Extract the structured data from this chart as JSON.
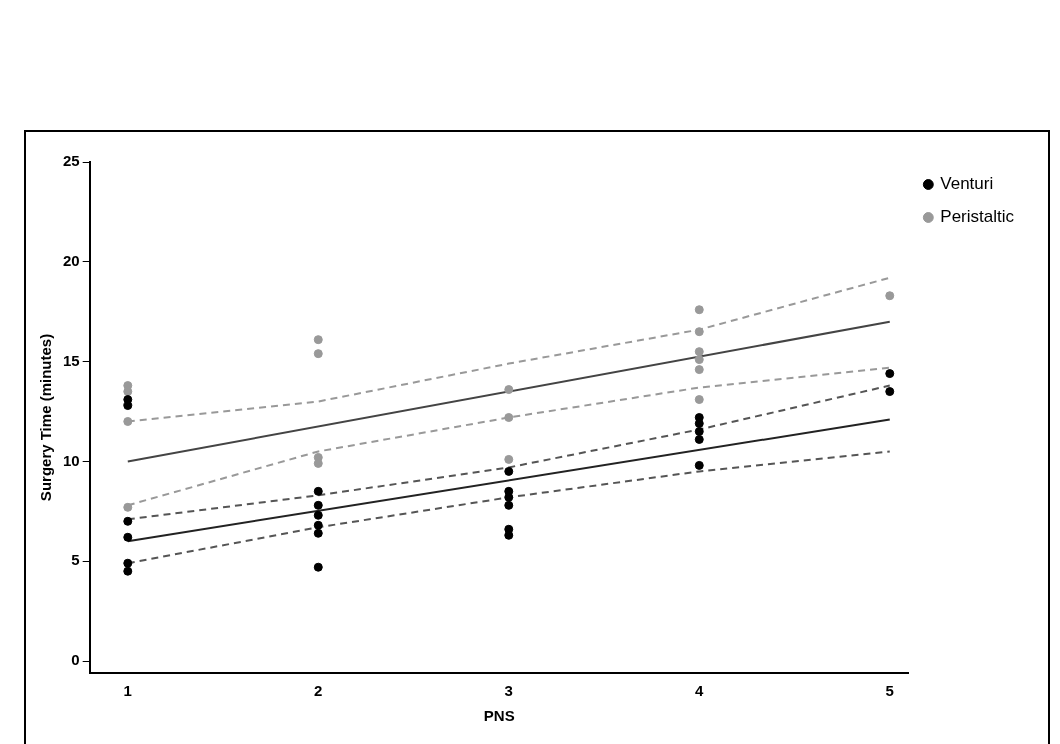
{
  "chart_data": {
    "type": "scatter",
    "xlabel": "PNS",
    "ylabel": "Surgery Time (minutes)",
    "xlim": [
      0.8,
      5.1
    ],
    "ylim": [
      -0.6,
      25
    ],
    "xticks": [
      1,
      2,
      3,
      4,
      5
    ],
    "yticks": [
      0,
      5,
      10,
      15,
      20,
      25
    ],
    "grid": false,
    "legend": "top right",
    "marker": "circle",
    "series": [
      {
        "name": "Venturi",
        "color": "#000000",
        "x": [
          1,
          1,
          1,
          1,
          1,
          1,
          2,
          2,
          2,
          2,
          2,
          2,
          3,
          3,
          3,
          3,
          3,
          3,
          4,
          4,
          4,
          4,
          4,
          5,
          5
        ],
        "values": [
          13.1,
          12.8,
          7.0,
          6.2,
          4.9,
          4.5,
          8.5,
          7.8,
          7.3,
          6.8,
          6.4,
          4.7,
          9.5,
          8.5,
          8.2,
          7.8,
          6.6,
          6.3,
          12.2,
          11.9,
          11.5,
          11.1,
          9.8,
          14.4,
          13.5
        ]
      },
      {
        "name": "Peristaltic",
        "color": "#999999",
        "x": [
          1,
          1,
          1,
          1,
          2,
          2,
          2,
          2,
          3,
          3,
          3,
          4,
          4,
          4,
          4,
          4,
          4,
          5
        ],
        "values": [
          13.8,
          13.5,
          12.0,
          7.7,
          16.1,
          15.4,
          10.2,
          9.9,
          13.6,
          12.2,
          10.1,
          17.6,
          16.5,
          15.5,
          15.1,
          14.6,
          13.1,
          18.3
        ]
      },
      {
        "type": "line",
        "color": "#222222",
        "line_style": "solid",
        "marker": "none",
        "x": [
          1,
          5
        ],
        "values": [
          6.0,
          12.1
        ]
      },
      {
        "type": "line",
        "color": "#444444",
        "line_style": "solid",
        "marker": "none",
        "x": [
          1,
          5
        ],
        "values": [
          10.0,
          17.0
        ]
      },
      {
        "type": "line",
        "color": "#555555",
        "line_style": "dashed",
        "marker": "none",
        "x": [
          1,
          2,
          3,
          4,
          5
        ],
        "values": [
          7.1,
          8.3,
          9.7,
          11.6,
          13.8
        ]
      },
      {
        "type": "line",
        "color": "#555555",
        "line_style": "dashed",
        "marker": "none",
        "x": [
          1,
          2,
          3,
          4,
          5
        ],
        "values": [
          4.9,
          6.7,
          8.2,
          9.5,
          10.5
        ]
      },
      {
        "type": "line",
        "color": "#999999",
        "line_style": "dashed",
        "marker": "none",
        "x": [
          1,
          2,
          3,
          4,
          5
        ],
        "values": [
          12.0,
          13.0,
          14.9,
          16.6,
          19.2
        ]
      },
      {
        "type": "line",
        "color": "#999999",
        "line_style": "dashed",
        "marker": "none",
        "x": [
          1,
          2,
          3,
          4,
          5
        ],
        "values": [
          7.8,
          10.5,
          12.2,
          13.7,
          14.7
        ]
      }
    ]
  }
}
